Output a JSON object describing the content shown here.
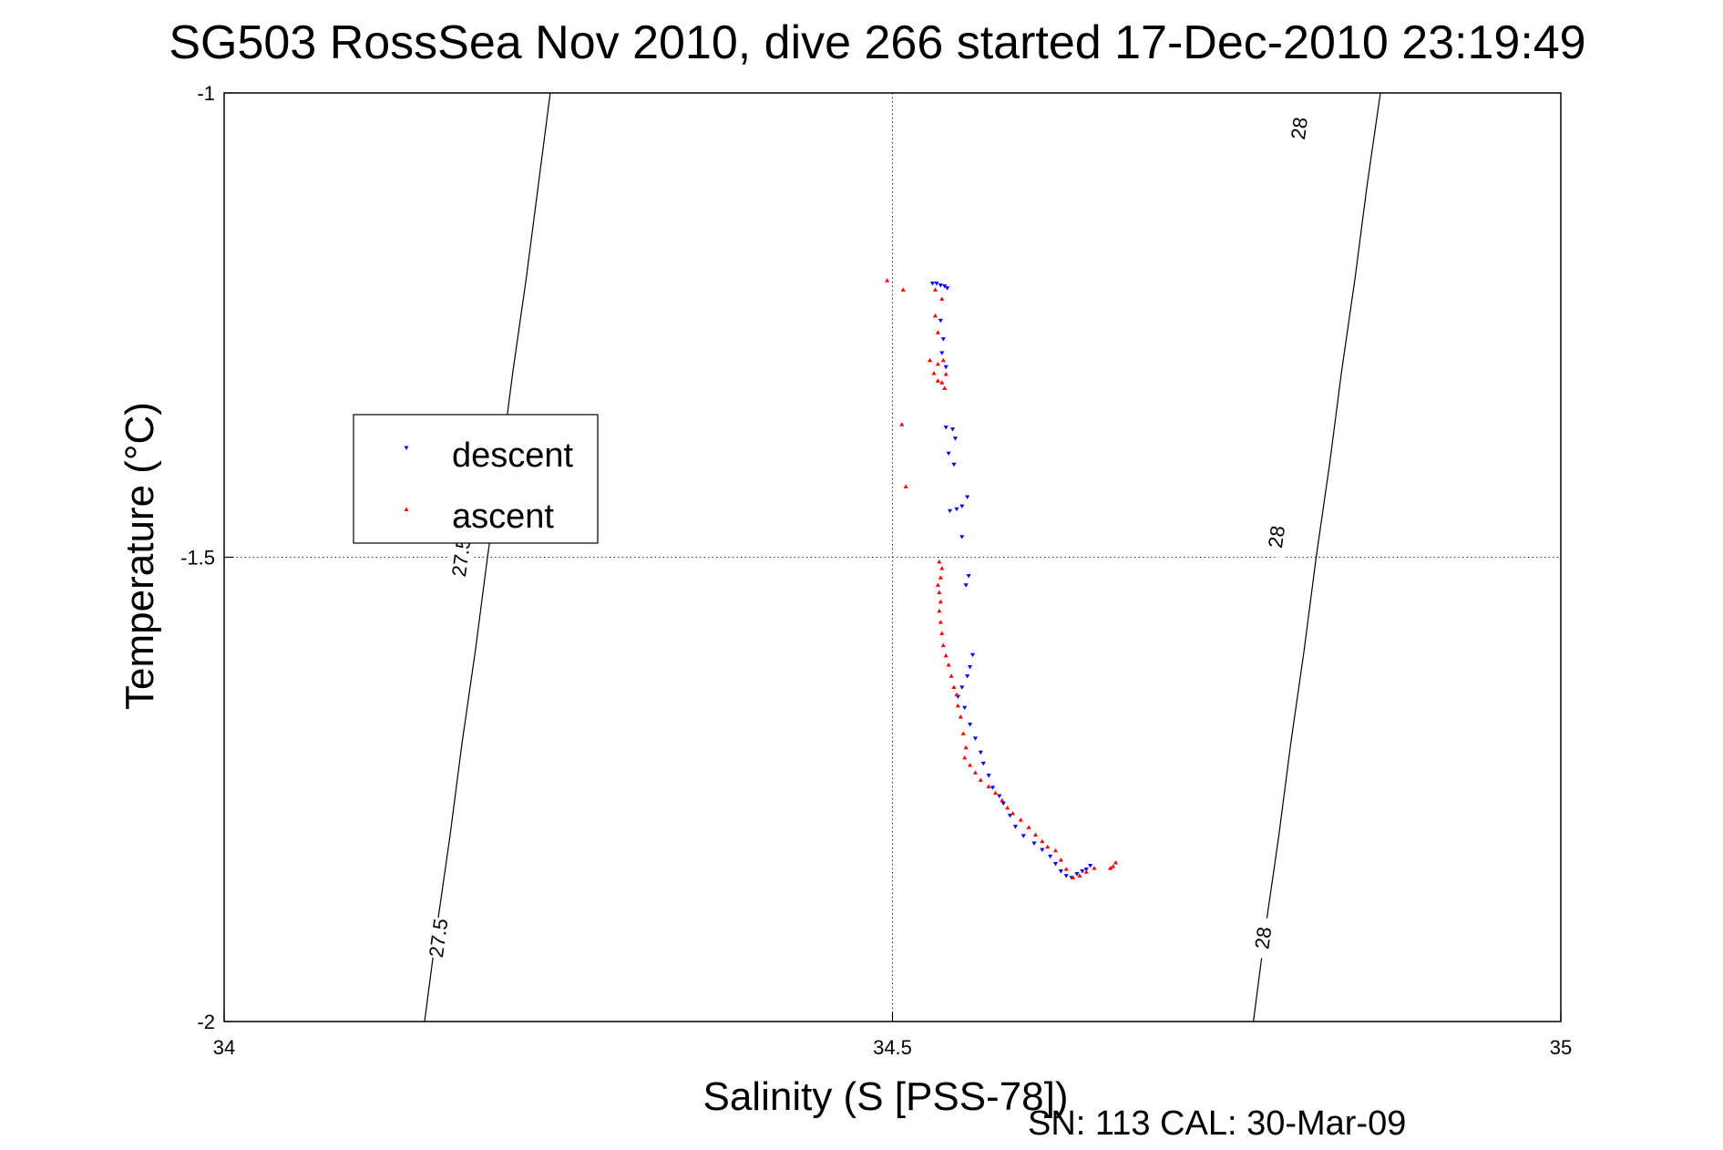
{
  "chart_data": {
    "type": "scatter",
    "title": "SG503 RossSea Nov 2010, dive 266 started 17-Dec-2010 23:19:49",
    "xlabel": "Salinity (S [PSS-78])",
    "ylabel": "Temperature (°C)",
    "footer": "SN: 113  CAL: 30-Mar-09",
    "xlim": [
      34,
      35
    ],
    "ylim": [
      -2,
      -1
    ],
    "x_ticks": [
      "34",
      "34.5",
      "35"
    ],
    "y_ticks": [
      "-1",
      "-1.5",
      "-2"
    ],
    "grid": true,
    "legend_position": "left",
    "series": [
      {
        "name": "descent",
        "color": "#0000ff",
        "marker": "triangle-down",
        "points": [
          [
            34.53,
            -1.205
          ],
          [
            34.533,
            -1.205
          ],
          [
            34.536,
            -1.207
          ],
          [
            34.539,
            -1.208
          ],
          [
            34.541,
            -1.21
          ],
          [
            34.536,
            -1.245
          ],
          [
            34.538,
            -1.265
          ],
          [
            34.537,
            -1.28
          ],
          [
            34.54,
            -1.295
          ],
          [
            34.54,
            -1.36
          ],
          [
            34.545,
            -1.362
          ],
          [
            34.547,
            -1.372
          ],
          [
            34.542,
            -1.388
          ],
          [
            34.546,
            -1.4
          ],
          [
            34.543,
            -1.45
          ],
          [
            34.548,
            -1.448
          ],
          [
            34.552,
            -1.445
          ],
          [
            34.556,
            -1.435
          ],
          [
            34.552,
            -1.478
          ],
          [
            34.557,
            -1.52
          ],
          [
            34.555,
            -1.53
          ],
          [
            34.56,
            -1.605
          ],
          [
            34.558,
            -1.618
          ],
          [
            34.556,
            -1.628
          ],
          [
            34.552,
            -1.64
          ],
          [
            34.549,
            -1.65
          ],
          [
            34.554,
            -1.662
          ],
          [
            34.558,
            -1.68
          ],
          [
            34.562,
            -1.695
          ],
          [
            34.566,
            -1.71
          ],
          [
            34.568,
            -1.722
          ],
          [
            34.572,
            -1.735
          ],
          [
            34.575,
            -1.748
          ],
          [
            34.58,
            -1.757
          ],
          [
            34.583,
            -1.765
          ],
          [
            34.588,
            -1.778
          ],
          [
            34.592,
            -1.79
          ],
          [
            34.598,
            -1.8
          ],
          [
            34.606,
            -1.808
          ],
          [
            34.612,
            -1.815
          ],
          [
            34.618,
            -1.822
          ],
          [
            34.622,
            -1.83
          ],
          [
            34.626,
            -1.838
          ],
          [
            34.63,
            -1.843
          ],
          [
            34.634,
            -1.845
          ],
          [
            34.638,
            -1.841
          ],
          [
            34.642,
            -1.838
          ],
          [
            34.645,
            -1.836
          ],
          [
            34.648,
            -1.832
          ]
        ]
      },
      {
        "name": "ascent",
        "color": "#ff0000",
        "marker": "triangle-up",
        "points": [
          [
            34.496,
            -1.202
          ],
          [
            34.508,
            -1.212
          ],
          [
            34.532,
            -1.212
          ],
          [
            34.537,
            -1.222
          ],
          [
            34.532,
            -1.24
          ],
          [
            34.534,
            -1.258
          ],
          [
            34.528,
            -1.288
          ],
          [
            34.534,
            -1.292
          ],
          [
            34.538,
            -1.288
          ],
          [
            34.531,
            -1.302
          ],
          [
            34.54,
            -1.303
          ],
          [
            34.537,
            -1.312
          ],
          [
            34.539,
            -1.318
          ],
          [
            34.534,
            -1.31
          ],
          [
            34.507,
            -1.357
          ],
          [
            34.51,
            -1.424
          ],
          [
            34.535,
            -1.505
          ],
          [
            34.537,
            -1.512
          ],
          [
            34.536,
            -1.522
          ],
          [
            34.534,
            -1.53
          ],
          [
            34.535,
            -1.538
          ],
          [
            34.536,
            -1.548
          ],
          [
            34.535,
            -1.558
          ],
          [
            34.536,
            -1.57
          ],
          [
            34.537,
            -1.582
          ],
          [
            34.538,
            -1.595
          ],
          [
            34.54,
            -1.606
          ],
          [
            34.542,
            -1.616
          ],
          [
            34.544,
            -1.628
          ],
          [
            34.546,
            -1.64
          ],
          [
            34.548,
            -1.648
          ],
          [
            34.549,
            -1.66
          ],
          [
            34.551,
            -1.672
          ],
          [
            34.553,
            -1.69
          ],
          [
            34.555,
            -1.705
          ],
          [
            34.554,
            -1.716
          ],
          [
            34.558,
            -1.724
          ],
          [
            34.562,
            -1.732
          ],
          [
            34.566,
            -1.74
          ],
          [
            34.572,
            -1.747
          ],
          [
            34.577,
            -1.754
          ],
          [
            34.582,
            -1.762
          ],
          [
            34.586,
            -1.77
          ],
          [
            34.59,
            -1.776
          ],
          [
            34.596,
            -1.783
          ],
          [
            34.602,
            -1.791
          ],
          [
            34.607,
            -1.799
          ],
          [
            34.612,
            -1.806
          ],
          [
            34.616,
            -1.812
          ],
          [
            34.622,
            -1.816
          ],
          [
            34.626,
            -1.826
          ],
          [
            34.63,
            -1.836
          ],
          [
            34.635,
            -1.845
          ],
          [
            34.64,
            -1.843
          ],
          [
            34.645,
            -1.839
          ],
          [
            34.651,
            -1.835
          ],
          [
            34.663,
            -1.835
          ],
          [
            34.665,
            -1.833
          ],
          [
            34.667,
            -1.829
          ]
        ]
      }
    ],
    "isopycnals": [
      {
        "label": "27.5",
        "points": [
          [
            34.15,
            -2.0
          ],
          [
            34.159,
            -1.9
          ],
          [
            34.169,
            -1.8
          ],
          [
            34.178,
            -1.7
          ],
          [
            34.188,
            -1.6
          ],
          [
            34.197,
            -1.5
          ],
          [
            34.207,
            -1.4
          ],
          [
            34.216,
            -1.3
          ],
          [
            34.226,
            -1.2
          ],
          [
            34.235,
            -1.1
          ],
          [
            34.244,
            -1.0
          ]
        ],
        "label_positions": [
          [
            34.16,
            -1.91
          ],
          [
            34.177,
            -1.5
          ]
        ]
      },
      {
        "label": "28",
        "points": [
          [
            34.77,
            -2.0
          ],
          [
            34.779,
            -1.9
          ],
          [
            34.789,
            -1.8
          ],
          [
            34.798,
            -1.7
          ],
          [
            34.808,
            -1.6
          ],
          [
            34.817,
            -1.5
          ],
          [
            34.827,
            -1.4
          ],
          [
            34.836,
            -1.3
          ],
          [
            34.846,
            -1.2
          ],
          [
            34.855,
            -1.1
          ],
          [
            34.865,
            -1.0
          ]
        ],
        "label_positions": [
          [
            34.777,
            -1.91
          ],
          [
            34.787,
            -1.478
          ],
          [
            34.804,
            -1.038
          ]
        ]
      }
    ]
  }
}
